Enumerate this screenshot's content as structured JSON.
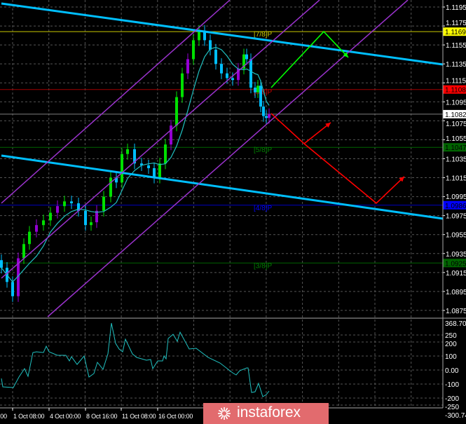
{
  "chart_data": {
    "type": "candlestick",
    "price_axis": {
      "range": [
        1.08683,
        1.12024
      ],
      "ticks": [
        "1.1195",
        "1.1175",
        "1.1155",
        "1.1135",
        "1.1115",
        "1.1095",
        "1.1075",
        "1.1055",
        "1.1035",
        "1.1015",
        "1.0995",
        "1.0975",
        "1.0955",
        "1.0935",
        "1.0915",
        "1.0895",
        "1.0875"
      ]
    },
    "price_badges": [
      {
        "value": "1.1169",
        "bg": "#ffff00",
        "fg": "#000000",
        "line": "#c8c800"
      },
      {
        "value": "1.1108",
        "bg": "#ff0000",
        "fg": "#000000",
        "line": "#a00000"
      },
      {
        "value": "1.1082",
        "bg": "#ffffff",
        "fg": "#000000",
        "line": "#808080"
      },
      {
        "value": "1.1047",
        "bg": "#006400",
        "fg": "#000000",
        "line": "#006400"
      },
      {
        "value": "1.0986",
        "bg": "#0000ff",
        "fg": "#000000",
        "line": "#0000c0"
      },
      {
        "value": "1.0925",
        "bg": "#006400",
        "fg": "#000000",
        "line": "#006400"
      }
    ],
    "murrey_labels": [
      {
        "text": "[7/8]P",
        "price": 1.1169,
        "color": "#c8c800"
      },
      {
        "text": "[6/8]P",
        "price": 1.1108,
        "color": "#d00000"
      },
      {
        "text": "[5/8]P",
        "price": 1.1047,
        "color": "#008000"
      },
      {
        "text": "[4/8]P",
        "price": 1.0986,
        "color": "#0000ff"
      },
      {
        "text": "[3/8]P",
        "price": 1.0925,
        "color": "#008000"
      }
    ],
    "time_labels": [
      {
        "text": ":00",
        "bar": 0
      },
      {
        "text": "1 Oct 08:00",
        "bar": 4.5
      },
      {
        "text": "4 Oct 00:00",
        "bar": 17.5
      },
      {
        "text": "8 Oct 16:00",
        "bar": 30.5
      },
      {
        "text": "11 Oct 08:00",
        "bar": 43.25
      },
      {
        "text": "16 Oct 00:00",
        "bar": 56.25
      }
    ],
    "closes": [
      [
        0,
        1.092
      ],
      [
        2,
        1.0905
      ],
      [
        4,
        1.089
      ],
      [
        6,
        1.093
      ],
      [
        8,
        1.0945
      ],
      [
        10,
        1.0958
      ],
      [
        12.5,
        1.0965
      ],
      [
        15,
        1.097
      ],
      [
        17.5,
        1.0978
      ],
      [
        20,
        1.0985
      ],
      [
        22.5,
        1.099
      ],
      [
        25,
        1.0988
      ],
      [
        27.5,
        1.098
      ],
      [
        30,
        1.0965
      ],
      [
        32,
        1.0968
      ],
      [
        34,
        1.098
      ],
      [
        36.5,
        1.0995
      ],
      [
        39,
        1.1015
      ],
      [
        41,
        1.101
      ],
      [
        43,
        1.104
      ],
      [
        45,
        1.1045
      ],
      [
        47.5,
        1.103
      ],
      [
        50,
        1.1028
      ],
      [
        52.5,
        1.1025
      ],
      [
        54.5,
        1.1015
      ],
      [
        56.5,
        1.103
      ],
      [
        58.5,
        1.105
      ],
      [
        60.5,
        1.107
      ],
      [
        62.5,
        1.11
      ],
      [
        64.5,
        1.1125
      ],
      [
        66.5,
        1.114
      ],
      [
        68.5,
        1.116
      ],
      [
        70.5,
        1.117
      ],
      [
        72.5,
        1.116
      ],
      [
        74.5,
        1.115
      ],
      [
        76.5,
        1.1135
      ],
      [
        78.5,
        1.1125
      ],
      [
        80.5,
        1.112
      ],
      [
        82.5,
        1.1118
      ],
      [
        84.5,
        1.113
      ],
      [
        86.5,
        1.1145
      ],
      [
        87.5,
        1.114
      ],
      [
        89,
        1.111
      ],
      [
        90.5,
        1.1105
      ],
      [
        91.5,
        1.1112
      ],
      [
        92.5,
        1.109
      ],
      [
        93.5,
        1.108
      ],
      [
        94.5,
        1.1078
      ],
      [
        95.5,
        1.1082
      ]
    ],
    "colors": {
      "up": "#00e000",
      "down": "#00bfff",
      "up_alt": "#9400d3",
      "ma": "#20c0c0"
    },
    "trendlines": [
      {
        "color": "#00bfff",
        "width": 3,
        "points": [
          [
            0,
            1.11987
          ],
          [
            157.5,
            1.11344
          ]
        ]
      },
      {
        "color": "#00bfff",
        "width": 3,
        "points": [
          [
            0,
            1.10383
          ],
          [
            157.5,
            1.09718
          ]
        ]
      },
      {
        "color": "#9932cc",
        "width": 1.5,
        "points": [
          [
            0,
            1.09881
          ],
          [
            81.5,
            1.12024
          ]
        ]
      },
      {
        "color": "#9932cc",
        "width": 1.5,
        "points": [
          [
            0,
            1.0909
          ],
          [
            113.5,
            1.12024
          ]
        ]
      },
      {
        "color": "#9932cc",
        "width": 1.5,
        "points": [
          [
            16.5,
            1.08683
          ],
          [
            145,
            1.12024
          ]
        ]
      }
    ],
    "arrows": [
      {
        "color": "#00ff00",
        "points": [
          [
            96.25,
            1.111
          ],
          [
            115,
            1.11691
          ],
          [
            123.75,
            1.11418
          ]
        ]
      },
      {
        "color": "#ff0000",
        "points": [
          [
            96.25,
            1.10827
          ],
          [
            108,
            1.10509
          ],
          [
            117.5,
            1.10731
          ]
        ]
      },
      {
        "color": "#ff0000",
        "points": [
          [
            108,
            1.10509
          ],
          [
            133.75,
            1.09881
          ],
          [
            143.75,
            1.10162
          ]
        ]
      }
    ],
    "indicator": {
      "max_label": "368.7008",
      "min_label": "-300.741",
      "ticks": [
        "250",
        "200",
        "100",
        "0.00",
        "-100",
        "-200",
        "-250"
      ],
      "tick_values": [
        250,
        200,
        100,
        0,
        -100,
        -200,
        -250
      ],
      "color": "#20c0c0",
      "values": [
        [
          0,
          -60
        ],
        [
          0.5,
          -120
        ],
        [
          4.25,
          -125
        ],
        [
          6.25,
          -50
        ],
        [
          8.25,
          10
        ],
        [
          9.5,
          -45
        ],
        [
          11.25,
          125
        ],
        [
          12.5,
          130
        ],
        [
          15,
          125
        ],
        [
          16,
          170
        ],
        [
          17,
          130
        ],
        [
          20,
          105
        ],
        [
          23,
          105
        ],
        [
          24.25,
          65
        ],
        [
          25,
          95
        ],
        [
          27,
          40
        ],
        [
          29.5,
          100
        ],
        [
          31.25,
          -50
        ],
        [
          33,
          -25
        ],
        [
          34.25,
          55
        ],
        [
          36.25,
          5
        ],
        [
          38,
          115
        ],
        [
          39.25,
          335
        ],
        [
          40.75,
          190
        ],
        [
          42,
          150
        ],
        [
          43.25,
          130
        ],
        [
          44.25,
          220
        ],
        [
          46.75,
          115
        ],
        [
          48.25,
          90
        ],
        [
          51.75,
          70
        ],
        [
          53.25,
          75
        ],
        [
          54,
          10
        ],
        [
          55.75,
          65
        ],
        [
          57.5,
          65
        ],
        [
          58,
          100
        ],
        [
          58.75,
          80
        ],
        [
          59.5,
          225
        ],
        [
          61.25,
          255
        ],
        [
          62.75,
          205
        ],
        [
          63.75,
          270
        ],
        [
          67,
          150
        ],
        [
          69.5,
          155
        ],
        [
          73.75,
          90
        ],
        [
          78,
          50
        ],
        [
          82.5,
          -20
        ],
        [
          83.75,
          -35
        ],
        [
          85,
          -5
        ],
        [
          87.5,
          15
        ],
        [
          88,
          15
        ],
        [
          89.25,
          -160
        ],
        [
          90.5,
          -155
        ],
        [
          91.75,
          -95
        ],
        [
          93.25,
          -190
        ],
        [
          94.5,
          -175
        ],
        [
          95.5,
          -150
        ]
      ]
    }
  },
  "watermark": {
    "text": "instaforex"
  }
}
